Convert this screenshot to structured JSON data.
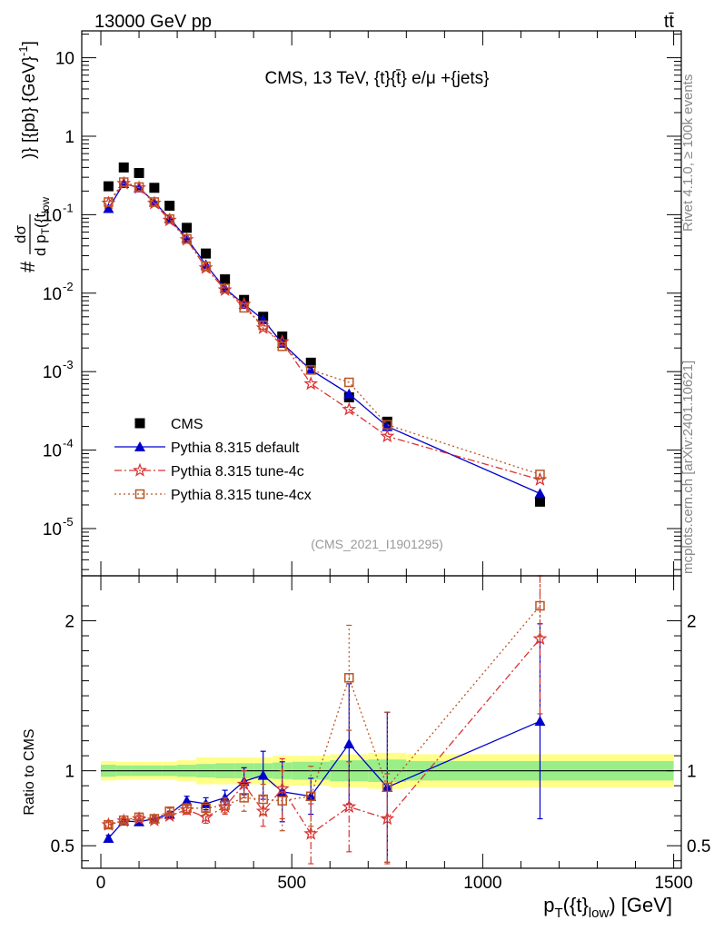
{
  "header": {
    "beam": "13000 GeV pp",
    "process": "tt̄",
    "side_version": "Rivet 4.1.0, ≥ 100k events",
    "side_site": "mcplots.cern.ch [arXiv:2401.10621]",
    "analysis_id": "(CMS_2021_I1901295)"
  },
  "chart_data": [
    {
      "type": "scatter",
      "panel": "main",
      "title": "CMS, 13 TeV, {t}{t̄} e/μ +{jets}",
      "ylabel": "# dσ / d p_T({t_low})} [{pb} {GeV}^-1]",
      "ylabel_parts": {
        "hash": "#",
        "num": "dσ",
        "den": "d p",
        "den_sub": "T",
        "den_arg": "({t",
        "den_arg_sub": "low",
        "tail": ")} [{pb} {GeV}",
        "tail_sup": "-1",
        "end": "]"
      },
      "yscale": "log",
      "xlim": [
        -50,
        1520
      ],
      "ylim": [
        2.5e-06,
        22
      ],
      "y_ticks": [
        {
          "v": 10,
          "label": "10"
        },
        {
          "v": 1,
          "label": "1"
        },
        {
          "v": 0.1,
          "label": "10",
          "exp": "-1"
        },
        {
          "v": 0.01,
          "label": "10",
          "exp": "-2"
        },
        {
          "v": 0.001,
          "label": "10",
          "exp": "-3"
        },
        {
          "v": 0.0001,
          "label": "10",
          "exp": "-4"
        },
        {
          "v": 1e-05,
          "label": "10",
          "exp": "-5"
        }
      ],
      "legend_position": "bottom-left",
      "series": [
        {
          "name": "CMS",
          "kind": "data",
          "color": "#000000",
          "marker": "square",
          "x": [
            20,
            60,
            100,
            140,
            180,
            225,
            275,
            325,
            375,
            425,
            475,
            550,
            650,
            750,
            1150
          ],
          "y": [
            0.23,
            0.4,
            0.34,
            0.22,
            0.13,
            0.068,
            0.032,
            0.015,
            0.0082,
            0.005,
            0.0028,
            0.0013,
            0.00047,
            0.00023,
            2.2e-05
          ]
        },
        {
          "name": "Pythia 8.315 default",
          "color": "#0000cc",
          "marker": "triangle",
          "line": "solid",
          "x": [
            20,
            60,
            100,
            140,
            180,
            225,
            275,
            325,
            375,
            425,
            475,
            550,
            650,
            750,
            1150
          ],
          "y": [
            0.12,
            0.25,
            0.22,
            0.145,
            0.09,
            0.05,
            0.023,
            0.0115,
            0.0072,
            0.0046,
            0.0023,
            0.00105,
            0.00052,
            0.0002,
            2.8e-05
          ]
        },
        {
          "name": "Pythia 8.315 tune-4c",
          "color": "#dd3333",
          "marker": "star",
          "line": "dashdot",
          "x": [
            20,
            60,
            100,
            140,
            180,
            225,
            275,
            325,
            375,
            425,
            475,
            550,
            650,
            750,
            1150
          ],
          "y": [
            0.14,
            0.25,
            0.22,
            0.14,
            0.085,
            0.048,
            0.021,
            0.011,
            0.0072,
            0.0036,
            0.0024,
            0.0007,
            0.00033,
            0.00015,
            4.2e-05
          ]
        },
        {
          "name": "Pythia 8.315 tune-4cx",
          "color": "#bb5522",
          "marker": "open-square",
          "line": "dotted",
          "x": [
            20,
            60,
            100,
            140,
            180,
            225,
            275,
            325,
            375,
            425,
            475,
            550,
            650,
            750,
            1150
          ],
          "y": [
            0.145,
            0.26,
            0.225,
            0.145,
            0.088,
            0.049,
            0.022,
            0.0115,
            0.0065,
            0.0039,
            0.0021,
            0.00105,
            0.00073,
            0.00021,
            4.9e-05
          ]
        }
      ]
    },
    {
      "type": "scatter",
      "panel": "ratio",
      "ylabel": "Ratio to CMS",
      "xlabel": "p_T({t}_low) [GeV]",
      "xlabel_parts": {
        "p": "p",
        "sub": "T",
        "arg": "({t}",
        "arg_sub": "low",
        "end": ") [GeV]"
      },
      "xlim": [
        -50,
        1520
      ],
      "ylim": [
        0.35,
        2.3
      ],
      "x_ticks": [
        0,
        500,
        1000,
        1500
      ],
      "y_ticks": [
        0.5,
        1,
        2
      ],
      "reference_line": 1,
      "uncertainty_bands": {
        "edges": [
          0,
          40,
          80,
          120,
          160,
          200,
          250,
          300,
          350,
          400,
          450,
          500,
          600,
          700,
          800,
          1500
        ],
        "inner": [
          0.04,
          0.035,
          0.035,
          0.035,
          0.035,
          0.04,
          0.045,
          0.05,
          0.05,
          0.05,
          0.055,
          0.06,
          0.07,
          0.075,
          0.065
        ],
        "outer": [
          0.065,
          0.06,
          0.06,
          0.06,
          0.06,
          0.07,
          0.09,
          0.09,
          0.09,
          0.09,
          0.1,
          0.1,
          0.11,
          0.12,
          0.11
        ],
        "inner_color": "#99ee88",
        "outer_color": "#ffff88"
      },
      "series": [
        {
          "name": "Pythia 8.315 default",
          "color": "#0000cc",
          "marker": "triangle",
          "line": "solid",
          "x": [
            20,
            60,
            100,
            140,
            180,
            225,
            275,
            325,
            375,
            425,
            475,
            550,
            650,
            750,
            1150
          ],
          "y": [
            0.55,
            0.665,
            0.66,
            0.68,
            0.71,
            0.8,
            0.78,
            0.82,
            0.93,
            0.97,
            0.86,
            0.83,
            1.18,
            0.89,
            1.33
          ],
          "err": [
            0.02,
            0.015,
            0.015,
            0.02,
            0.02,
            0.03,
            0.04,
            0.05,
            0.09,
            0.16,
            0.2,
            0.12,
            0.4,
            0.5,
            0.65
          ]
        },
        {
          "name": "Pythia 8.315 tune-4c",
          "color": "#dd3333",
          "marker": "star",
          "line": "dashdot",
          "x": [
            20,
            60,
            100,
            140,
            180,
            225,
            275,
            325,
            375,
            425,
            475,
            550,
            650,
            750,
            1150
          ],
          "y": [
            0.64,
            0.665,
            0.68,
            0.67,
            0.7,
            0.74,
            0.69,
            0.76,
            0.91,
            0.73,
            0.88,
            0.58,
            0.76,
            0.68,
            1.88
          ],
          "err": [
            0.02,
            0.015,
            0.015,
            0.02,
            0.02,
            0.03,
            0.04,
            0.05,
            0.09,
            0.1,
            0.2,
            0.2,
            0.3,
            0.3,
            0.5
          ]
        },
        {
          "name": "Pythia 8.315 tune-4cx",
          "color": "#bb5522",
          "marker": "open-square",
          "line": "dotted",
          "x": [
            20,
            60,
            100,
            140,
            180,
            225,
            275,
            325,
            375,
            425,
            475,
            550,
            650,
            750,
            1150
          ],
          "y": [
            0.64,
            0.67,
            0.69,
            0.68,
            0.73,
            0.75,
            0.75,
            0.77,
            0.82,
            0.81,
            0.8,
            0.83,
            1.62,
            0.89,
            2.1
          ],
          "err": [
            0.02,
            0.015,
            0.015,
            0.02,
            0.02,
            0.03,
            0.04,
            0.05,
            0.09,
            0.1,
            0.2,
            0.2,
            0.35,
            0.5,
            0.2
          ]
        }
      ]
    }
  ]
}
